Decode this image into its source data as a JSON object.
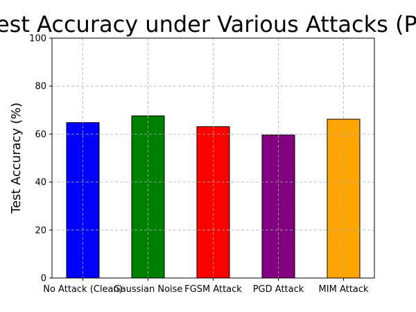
{
  "chart_data": {
    "type": "bar",
    "title": "Test Accuracy under Various Attacks (Po",
    "ylabel": "Test Accuracy (%)",
    "xlabel": "",
    "categories": [
      "No Attack (Clean)",
      "Gaussian Noise",
      "FGSM Attack",
      "PGD Attack",
      "MIM Attack"
    ],
    "values": [
      64.8,
      67.6,
      63.1,
      59.6,
      66.2
    ],
    "colors": [
      "#0000ff",
      "#008000",
      "#ff0000",
      "#800080",
      "#ffa500"
    ],
    "edge_color": "#000000",
    "ylim": [
      0,
      100
    ],
    "yticks": [
      0,
      20,
      40,
      60,
      80,
      100
    ],
    "grid": true
  }
}
